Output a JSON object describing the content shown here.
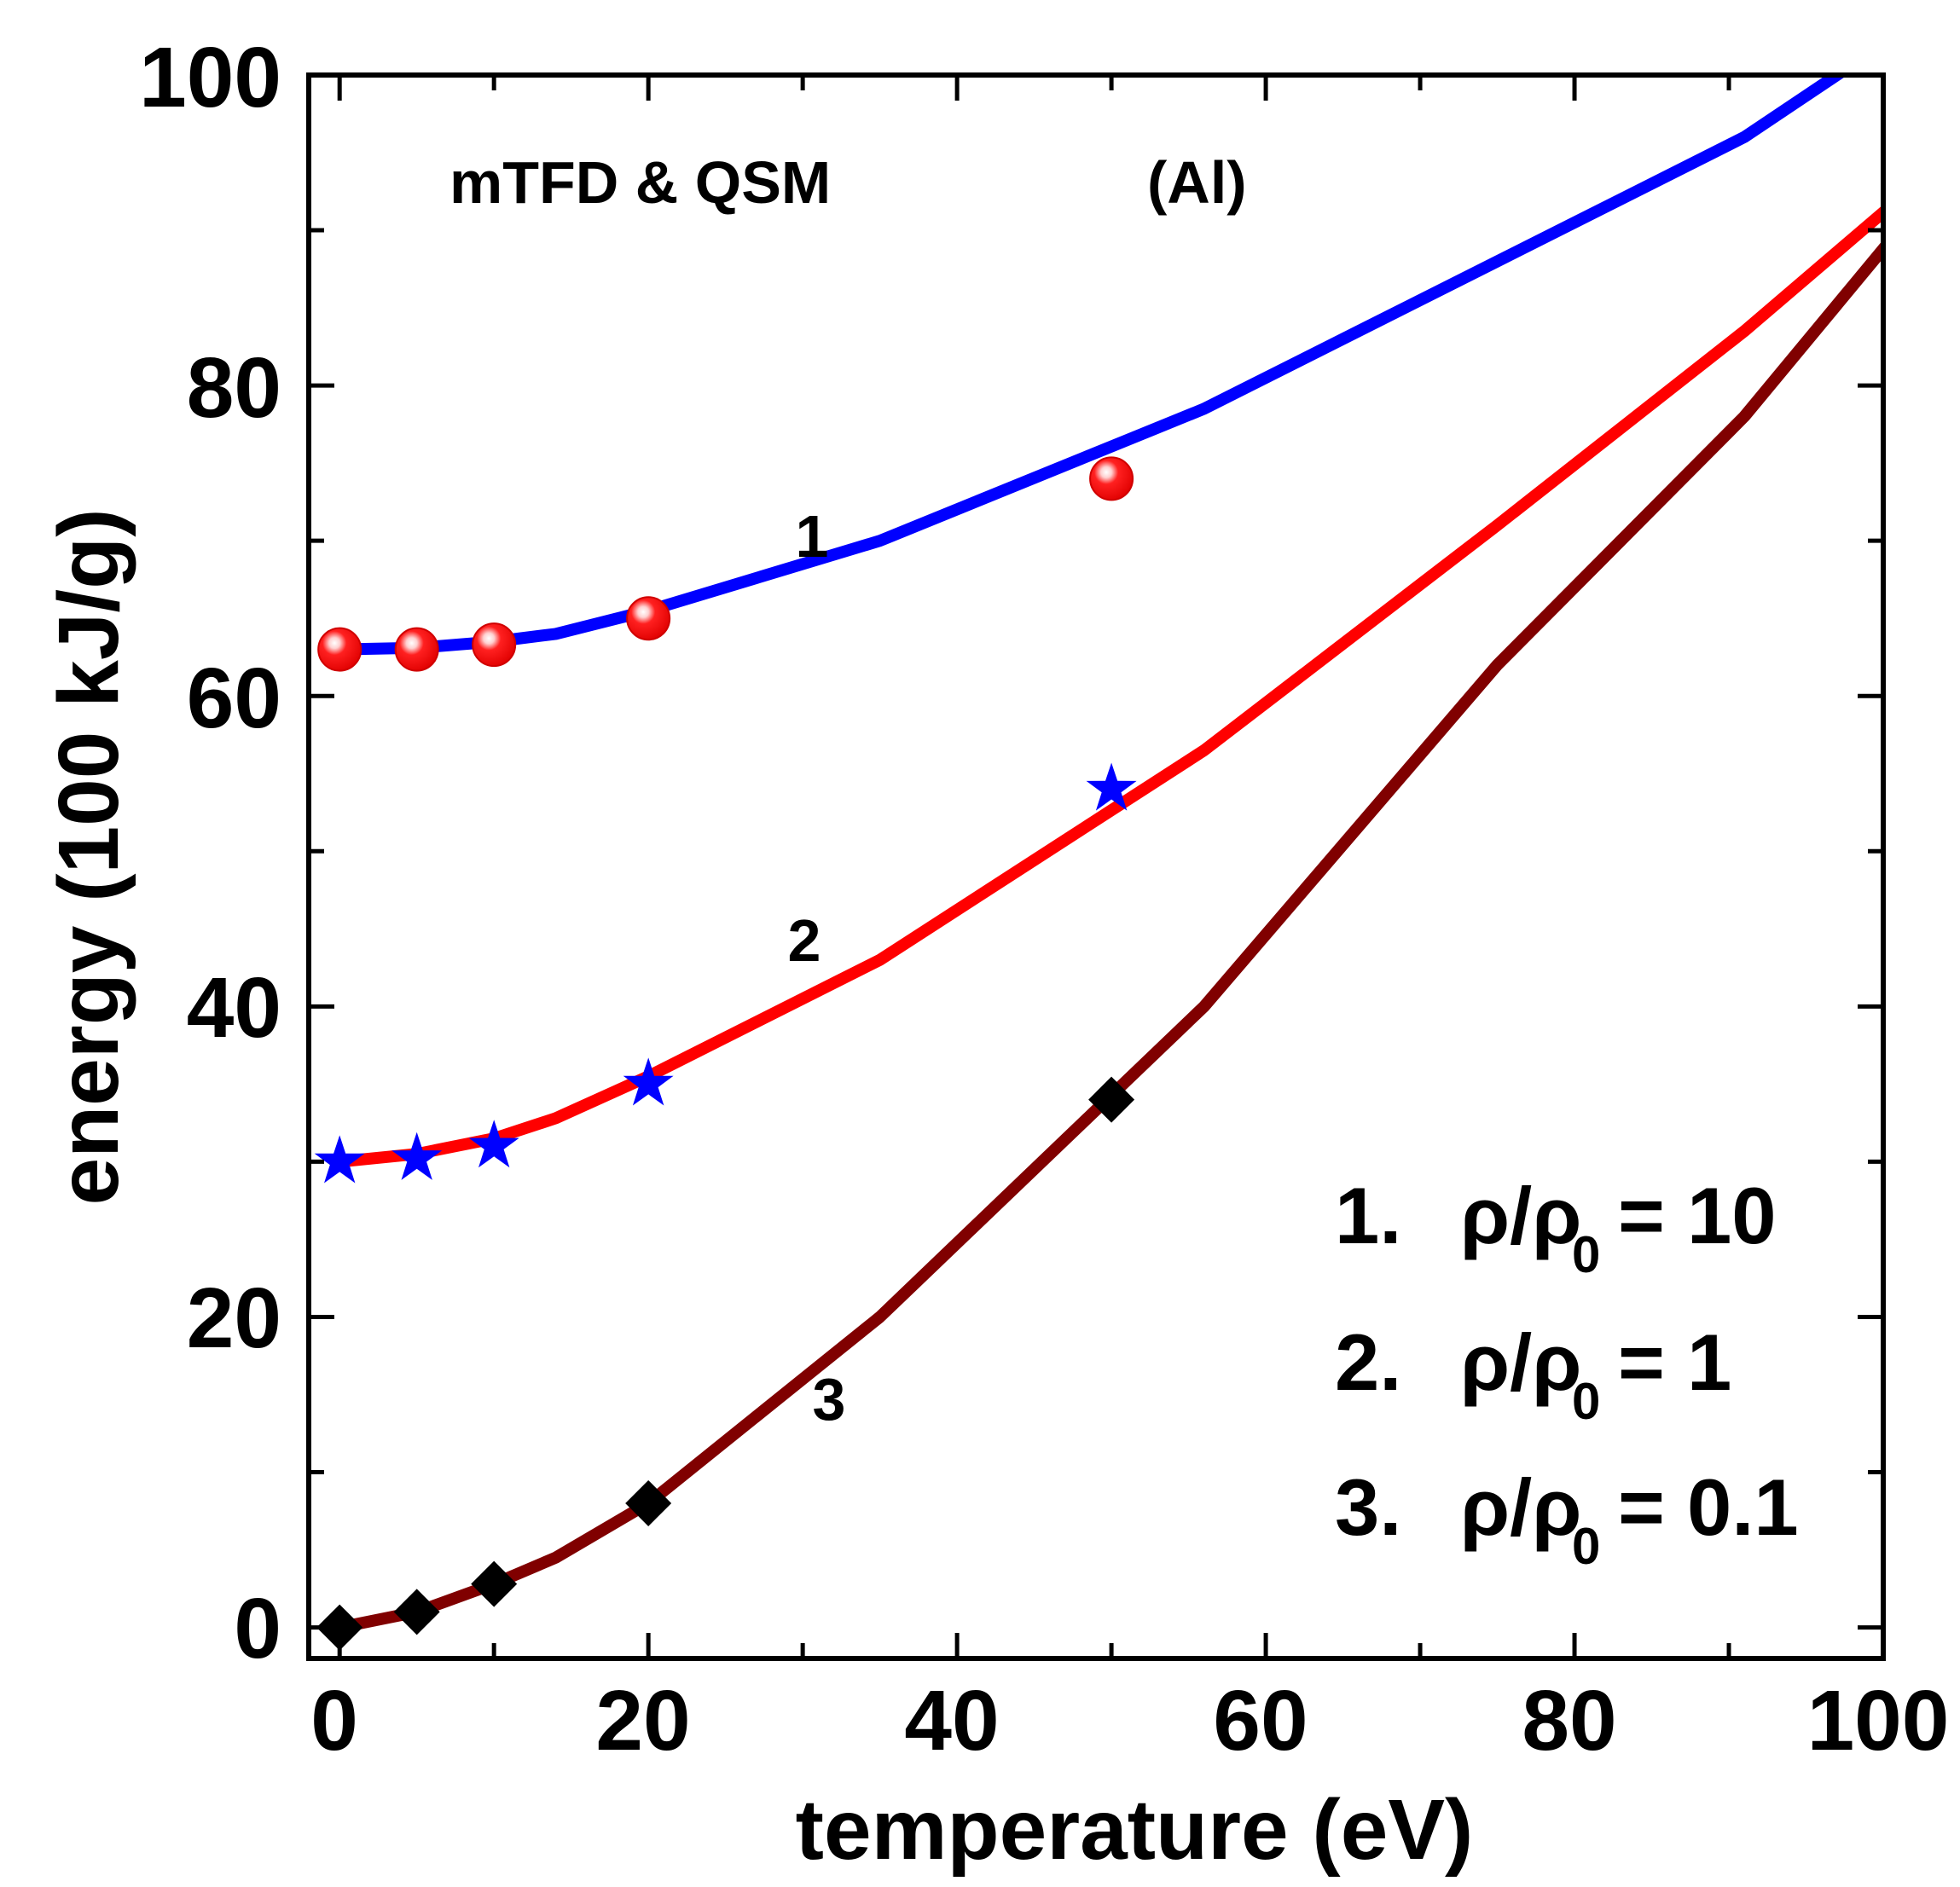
{
  "chart_data": {
    "type": "line",
    "title": "",
    "xlabel": "temperature (eV)",
    "ylabel": "energy (100 kJ/g)",
    "xlim": [
      -2,
      100
    ],
    "ylim": [
      -2,
      100
    ],
    "x_ticks": [
      0,
      20,
      40,
      60,
      80,
      100
    ],
    "y_ticks": [
      0,
      20,
      40,
      60,
      80,
      100
    ],
    "x_tick_labels": [
      "0",
      "20",
      "40",
      "60",
      "80",
      "100"
    ],
    "y_tick_labels": [
      "0",
      "20",
      "40",
      "60",
      "80",
      "100"
    ],
    "grid": false,
    "annotations": {
      "method": "mTFD & QSM",
      "material": "(Al)"
    },
    "legend": {
      "placement": "bottom-right",
      "entries": [
        {
          "num": "1.",
          "lhs": "ρ/ρ",
          "sub": "0",
          "rhs": "= 10"
        },
        {
          "num": "2.",
          "lhs": "ρ/ρ",
          "sub": "0",
          "rhs": "= 1"
        },
        {
          "num": "3.",
          "lhs": "ρ/ρ",
          "sub": "0",
          "rhs": "= 0.1"
        }
      ]
    },
    "series": [
      {
        "label": "1",
        "kind": "line",
        "color": "#0000ff",
        "x": [
          0,
          5,
          10,
          14,
          20,
          35,
          56,
          75,
          91,
          100
        ],
        "y": [
          63.0,
          63.1,
          63.5,
          64.0,
          65.5,
          70.0,
          78.5,
          88.0,
          96.0,
          102.0
        ]
      },
      {
        "label": "2",
        "kind": "line",
        "color": "#ff0000",
        "x": [
          0,
          5,
          10,
          14,
          20,
          35,
          56,
          75,
          91,
          101
        ],
        "y": [
          30.0,
          30.5,
          31.5,
          32.8,
          35.5,
          43.0,
          56.5,
          71.0,
          83.5,
          92.0
        ]
      },
      {
        "label": "3",
        "kind": "line",
        "color": "#800000",
        "x": [
          0,
          5,
          10,
          14,
          20,
          35,
          56,
          75,
          91,
          101
        ],
        "y": [
          0.0,
          1.0,
          2.8,
          4.5,
          8.0,
          20.0,
          40.0,
          62.0,
          78.0,
          90.0
        ]
      },
      {
        "label": "",
        "kind": "markers",
        "marker": "sphere",
        "color": "#ff0000",
        "x": [
          0,
          5,
          10,
          20,
          50
        ],
        "y": [
          63.0,
          63.0,
          63.3,
          65.0,
          74.0
        ]
      },
      {
        "label": "",
        "kind": "markers",
        "marker": "star",
        "color": "#0000ff",
        "x": [
          0,
          5,
          10,
          20,
          50
        ],
        "y": [
          30.0,
          30.2,
          31.0,
          35.0,
          54.0
        ]
      },
      {
        "label": "",
        "kind": "markers",
        "marker": "diamond",
        "color": "#000000",
        "x": [
          0,
          5,
          10,
          20,
          50
        ],
        "y": [
          0.0,
          1.0,
          2.8,
          8.0,
          34.0
        ]
      }
    ]
  }
}
